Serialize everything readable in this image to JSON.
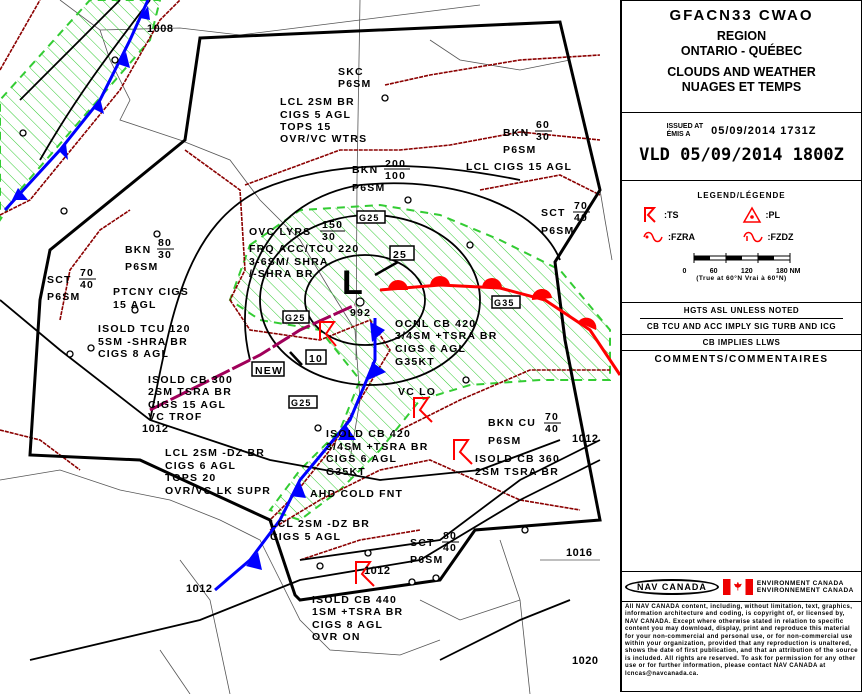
{
  "header": {
    "product": "GFACN33  CWAO",
    "region_label": "REGION",
    "region": "ONTARIO - QUÉBEC",
    "chart_en": "CLOUDS AND WEATHER",
    "chart_fr": "NUAGES ET TEMPS"
  },
  "issued": {
    "label_en": "ISSUED AT",
    "label_fr": "ÉMIS A",
    "value": "05/09/2014  1731Z",
    "valid": "VLD 05/09/2014 1800Z"
  },
  "legend": {
    "title": "LEGEND/LÉGENDE",
    "items": [
      {
        "icon": "thunderstorm-icon",
        "label": ":TS"
      },
      {
        "icon": "ice-pellets-icon",
        "label": ":PL"
      },
      {
        "icon": "freezing-rain-icon",
        "label": ":FZRA"
      },
      {
        "icon": "freezing-drizzle-icon",
        "label": ":FZDZ"
      }
    ],
    "scale_ticks": [
      "0",
      "60",
      "120",
      "180 NM"
    ],
    "scale_note": "(True at 60°N     Vrai à 60°N)"
  },
  "notes": [
    "HGTS ASL UNLESS NOTED",
    "CB TCU AND ACC IMPLY SIG TURB AND ICG",
    "CB IMPLIES LLWS"
  ],
  "comments_title": "COMMENTS/COMMENTAIRES",
  "logos": {
    "nav_canada": "NAV CANADA",
    "env_en": "ENVIRONMENT CANADA",
    "env_fr": "ENVIRONNEMENT CANADA"
  },
  "copyright": "All NAV CANADA content, including, without limitation, text, graphics, information architecture and coding, is copyright of, or licensed by, NAV CANADA. Except where otherwise stated in relation to specific content you may download, display, print and reproduce this material for your non-commercial and personal use, or for non-commercial use within your organization, provided that any reproduction is unaltered, shows the date of first publication, and that an attribution of the source is included. All rights are reserved. To ask for permission for any other use or for further information, please contact NAV CANADA at lcncas@navcanada.ca.",
  "colors": {
    "cold_front": "#0000ff",
    "warm_front": "#ff0000",
    "cloud_boundary": "#8b0000",
    "precip_hatch": "#33cc33",
    "thunderstorm": "#ff0000"
  },
  "map": {
    "low": {
      "symbol": "L",
      "pressure": "992"
    },
    "isobars": [
      "1008",
      "1012",
      "1012",
      "1012",
      "1016",
      "1020",
      "1012"
    ],
    "movement_boxes": [
      "25",
      "10",
      "NEW"
    ],
    "gust_boxes": [
      "G25",
      "G25",
      "G35",
      "G25"
    ],
    "areas": [
      {
        "lines": [
          "SKC",
          "P6SM"
        ]
      },
      {
        "lines": [
          "LCL 2SM BR",
          "CIGS 5 AGL",
          "TOPS 15",
          "OVR/VC WTRS"
        ]
      },
      {
        "cover": "BKN",
        "top": "200",
        "base": "100",
        "lines": [
          "P6SM"
        ]
      },
      {
        "cover": "BKN",
        "top": "60",
        "base": "30",
        "lines": [
          "P6SM",
          "LCL CIGS 15 AGL"
        ]
      },
      {
        "cover": "SCT",
        "top": "70",
        "base": "40",
        "lines": [
          "P6SM"
        ]
      },
      {
        "cover": "OVC LYRS",
        "top": "150",
        "base": "30",
        "lines": [
          "FRQ ACC/TCU 220",
          "3-6SM/ SHRA",
          "/-SHRA BR"
        ]
      },
      {
        "lines": [
          "OCNL CB 420",
          "3/4SM +TSRA BR",
          "CIGS 6 AGL",
          "G35KT"
        ]
      },
      {
        "lines": [
          "VC LO"
        ]
      },
      {
        "cover": "BKN",
        "top": "80",
        "base": "30",
        "lines": [
          "P6SM",
          "PTCNY CIGS",
          "15 AGL",
          "ISOLD TCU 120",
          "5SM -SHRA BR",
          "CIGS 8 AGL",
          "ISOLD CB 300",
          "2SM TSRA BR",
          "CIGS 15 AGL",
          "VC TROF"
        ]
      },
      {
        "cover": "SCT",
        "top": "70",
        "base": "40",
        "lines": [
          "P6SM"
        ]
      },
      {
        "lines": [
          "LCL 2SM -DZ BR",
          "CIGS 6 AGL",
          "TOPS 20",
          "OVR/VC LK SUPR"
        ]
      },
      {
        "lines": [
          "ISOLD CB 420",
          "3/4SM +TSRA BR",
          "CIGS 6 AGL",
          "G35KT"
        ]
      },
      {
        "lines": [
          "AHD COLD FNT"
        ]
      },
      {
        "lines": [
          "LCL 2SM -DZ BR",
          "CIGS 5 AGL"
        ]
      },
      {
        "cover": "BKN CU",
        "top": "70",
        "base": "40",
        "lines": [
          "P6SM",
          "ISOLD CB 360",
          "2SM TSRA BR"
        ]
      },
      {
        "cover": "SCT",
        "top": "80",
        "base": "40",
        "lines": [
          "P6SM"
        ]
      },
      {
        "lines": [
          "ISOLD CB 440",
          "1SM +TSRA BR",
          "CIGS 8 AGL",
          "OVR ON"
        ]
      }
    ]
  }
}
